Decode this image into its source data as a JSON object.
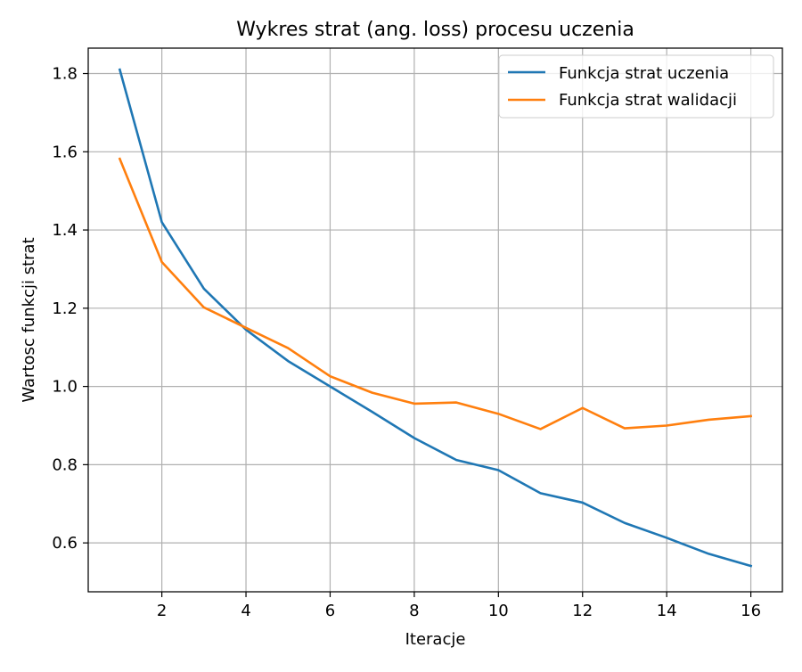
{
  "chart_data": {
    "type": "line",
    "title": "Wykres strat (ang. loss) procesu uczenia",
    "xlabel": "Iteracje",
    "ylabel": "Wartosc funkcji strat",
    "x": [
      1,
      2,
      3,
      4,
      5,
      6,
      7,
      8,
      9,
      10,
      11,
      12,
      13,
      14,
      15,
      16
    ],
    "xlim": [
      0.25,
      16.75
    ],
    "ylim": [
      0.475,
      1.865
    ],
    "xticks": [
      2,
      4,
      6,
      8,
      10,
      12,
      14,
      16
    ],
    "yticks": [
      0.6,
      0.8,
      1.0,
      1.2,
      1.4,
      1.6,
      1.8
    ],
    "xtick_labels": [
      "2",
      "4",
      "6",
      "8",
      "10",
      "12",
      "14",
      "16"
    ],
    "ytick_labels": [
      "0.6",
      "0.8",
      "1.0",
      "1.2",
      "1.4",
      "1.6",
      "1.8"
    ],
    "grid": true,
    "legend_position": "top-right",
    "series": [
      {
        "name": "Funkcja strat uczenia",
        "color": "#1f77b4",
        "values": [
          1.81,
          1.42,
          1.25,
          1.145,
          1.065,
          1.0,
          0.935,
          0.868,
          0.812,
          0.786,
          0.727,
          0.703,
          0.651,
          0.613,
          0.572,
          0.541
        ]
      },
      {
        "name": "Funkcja strat walidacji",
        "color": "#ff7f0e",
        "values": [
          1.582,
          1.318,
          1.202,
          1.15,
          1.098,
          1.026,
          0.984,
          0.956,
          0.959,
          0.93,
          0.891,
          0.945,
          0.893,
          0.9,
          0.915,
          0.924
        ]
      }
    ]
  }
}
